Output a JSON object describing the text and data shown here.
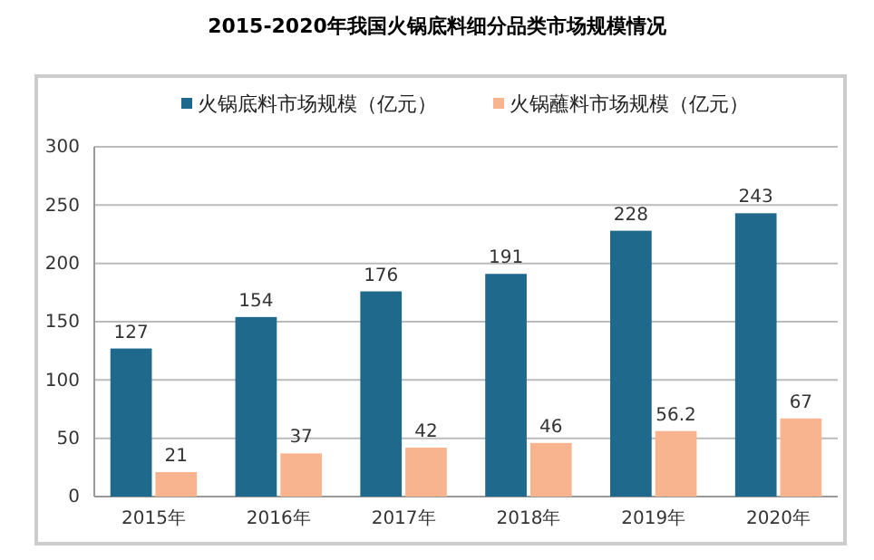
{
  "chart_data": {
    "type": "bar",
    "title": "2015-2020年我国火锅底料细分品类市场规模情况",
    "categories": [
      "2015年",
      "2016年",
      "2017年",
      "2018年",
      "2019年",
      "2020年"
    ],
    "series": [
      {
        "name": "火锅底料市场规模（亿元）",
        "color": "#1f6a8c",
        "values": [
          127,
          154,
          176,
          191,
          228,
          243
        ]
      },
      {
        "name": "火锅蘸料市场规模（亿元）",
        "color": "#f7b48f",
        "values": [
          21,
          37,
          42,
          46,
          56.2,
          67
        ]
      }
    ],
    "ylim": [
      0,
      300
    ],
    "yticks": [
      0,
      50,
      100,
      150,
      200,
      250,
      300
    ],
    "grid": "y",
    "legend": "top",
    "data_labels": true
  }
}
